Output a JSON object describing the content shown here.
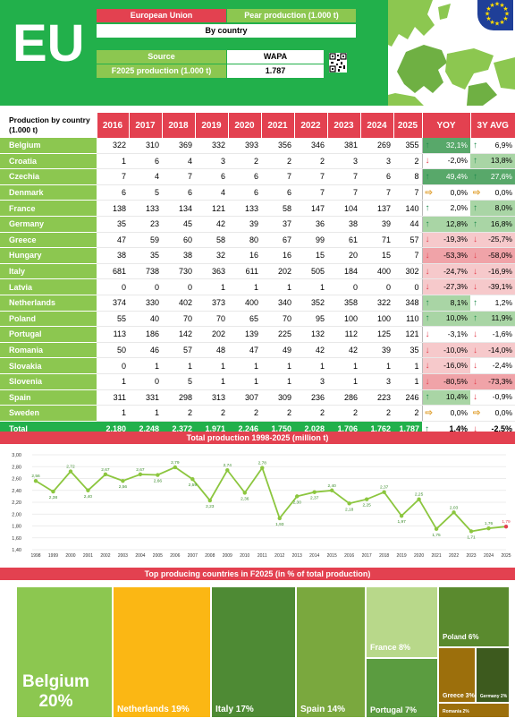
{
  "header": {
    "region": "EU",
    "region_name": "European Union",
    "product": "Pear production (1.000 t)",
    "breakdown": "By country",
    "source_label": "Source",
    "source_value": "WAPA",
    "forecast_label": "F2025 production (1.000 t)",
    "forecast_value": "1.787"
  },
  "table": {
    "corner_label": "Production by country (1.000 t)",
    "years": [
      "2016",
      "2017",
      "2018",
      "2019",
      "2020",
      "2021",
      "2022",
      "2023",
      "2024",
      "2025"
    ],
    "yoy_header": "YOY",
    "avg_header": "3Y AVG",
    "rows": [
      {
        "country": "Belgium",
        "values": [
          "322",
          "310",
          "369",
          "332",
          "393",
          "356",
          "346",
          "381",
          "269",
          "355"
        ],
        "yoy": "32,1%",
        "avg": "6,9%"
      },
      {
        "country": "Croatia",
        "values": [
          "1",
          "6",
          "4",
          "3",
          "2",
          "2",
          "2",
          "3",
          "3",
          "2"
        ],
        "yoy": "-2,0%",
        "avg": "13,8%"
      },
      {
        "country": "Czechia",
        "values": [
          "7",
          "4",
          "7",
          "6",
          "6",
          "7",
          "7",
          "7",
          "6",
          "8"
        ],
        "yoy": "49,4%",
        "avg": "27,6%"
      },
      {
        "country": "Denmark",
        "values": [
          "6",
          "5",
          "6",
          "4",
          "6",
          "6",
          "7",
          "7",
          "7",
          "7"
        ],
        "yoy": "0,0%",
        "avg": "0,0%"
      },
      {
        "country": "France",
        "values": [
          "138",
          "133",
          "134",
          "121",
          "133",
          "58",
          "147",
          "104",
          "137",
          "140"
        ],
        "yoy": "2,0%",
        "avg": "8,0%"
      },
      {
        "country": "Germany",
        "values": [
          "35",
          "23",
          "45",
          "42",
          "39",
          "37",
          "36",
          "38",
          "39",
          "44"
        ],
        "yoy": "12,8%",
        "avg": "16,8%"
      },
      {
        "country": "Greece",
        "values": [
          "47",
          "59",
          "60",
          "58",
          "80",
          "67",
          "99",
          "61",
          "71",
          "57"
        ],
        "yoy": "-19,3%",
        "avg": "-25,7%"
      },
      {
        "country": "Hungary",
        "values": [
          "38",
          "35",
          "38",
          "32",
          "16",
          "16",
          "15",
          "20",
          "15",
          "7"
        ],
        "yoy": "-53,3%",
        "avg": "-58,0%"
      },
      {
        "country": "Italy",
        "values": [
          "681",
          "738",
          "730",
          "363",
          "611",
          "202",
          "505",
          "184",
          "400",
          "302"
        ],
        "yoy": "-24,7%",
        "avg": "-16,9%"
      },
      {
        "country": "Latvia",
        "values": [
          "0",
          "0",
          "0",
          "1",
          "1",
          "1",
          "1",
          "0",
          "0",
          "0"
        ],
        "yoy": "-27,3%",
        "avg": "-39,1%"
      },
      {
        "country": "Netherlands",
        "values": [
          "374",
          "330",
          "402",
          "373",
          "400",
          "340",
          "352",
          "358",
          "322",
          "348"
        ],
        "yoy": "8,1%",
        "avg": "1,2%"
      },
      {
        "country": "Poland",
        "values": [
          "55",
          "40",
          "70",
          "70",
          "65",
          "70",
          "95",
          "100",
          "100",
          "110"
        ],
        "yoy": "10,0%",
        "avg": "11,9%"
      },
      {
        "country": "Portugal",
        "values": [
          "113",
          "186",
          "142",
          "202",
          "139",
          "225",
          "132",
          "112",
          "125",
          "121"
        ],
        "yoy": "-3,1%",
        "avg": "-1,6%"
      },
      {
        "country": "Romania",
        "values": [
          "50",
          "46",
          "57",
          "48",
          "47",
          "49",
          "42",
          "42",
          "39",
          "35"
        ],
        "yoy": "-10,0%",
        "avg": "-14,0%"
      },
      {
        "country": "Slovakia",
        "values": [
          "0",
          "1",
          "1",
          "1",
          "1",
          "1",
          "1",
          "1",
          "1",
          "1"
        ],
        "yoy": "-16,0%",
        "avg": "-2,4%"
      },
      {
        "country": "Slovenia",
        "values": [
          "1",
          "0",
          "5",
          "1",
          "1",
          "1",
          "3",
          "1",
          "3",
          "1"
        ],
        "yoy": "-80,5%",
        "avg": "-73,3%"
      },
      {
        "country": "Spain",
        "values": [
          "311",
          "331",
          "298",
          "313",
          "307",
          "309",
          "236",
          "286",
          "223",
          "246"
        ],
        "yoy": "10,4%",
        "avg": "-0,9%"
      },
      {
        "country": "Sweden",
        "values": [
          "1",
          "1",
          "2",
          "2",
          "2",
          "2",
          "2",
          "2",
          "2",
          "2"
        ],
        "yoy": "0,0%",
        "avg": "0,0%"
      }
    ],
    "total": {
      "country": "Total",
      "values": [
        "2.180",
        "2.248",
        "2.372",
        "1.971",
        "2.246",
        "1.750",
        "2.028",
        "1.706",
        "1.762",
        "1.787"
      ],
      "yoy": "1,4%",
      "avg": "-2,5%"
    }
  },
  "colors": {
    "green_dark": "#22b04b",
    "green_light": "#8cc750",
    "red": "#e34150",
    "line": "#8cc63f",
    "last_point": "#e34150",
    "up_arrow": "#1f8a4c",
    "down_arrow": "#e34150",
    "flat_arrow": "#e0a030"
  },
  "line_chart": {
    "title": "Total production 1998-2025 (million t)",
    "chart_data": {
      "type": "line",
      "x": [
        "1998",
        "1999",
        "2000",
        "2001",
        "2002",
        "2003",
        "2004",
        "2005",
        "2006",
        "2007",
        "2008",
        "2009",
        "2010",
        "2011",
        "2012",
        "2013",
        "2014",
        "2015",
        "2016",
        "2017",
        "2018",
        "2019",
        "2020",
        "2021",
        "2022",
        "2023",
        "2024",
        "2025"
      ],
      "series": [
        {
          "values": [
            2.56,
            2.38,
            2.72,
            2.4,
            2.67,
            2.56,
            2.67,
            2.66,
            2.79,
            2.59,
            2.23,
            2.74,
            2.36,
            2.78,
            1.93,
            2.3,
            2.37,
            2.4,
            2.18,
            2.25,
            2.37,
            1.97,
            2.25,
            1.75,
            2.03,
            1.71,
            1.76,
            1.79
          ]
        }
      ],
      "labels": [
        "2,56",
        "2,38",
        "2,72",
        "2,40",
        "2,67",
        "2,56",
        "2,67",
        "2,66",
        "2,79",
        "2,59",
        "2,23",
        "2,74",
        "2,36",
        "2,78",
        "1,93",
        "2,30",
        "2,37",
        "2,40",
        "2,18",
        "2,25",
        "2,37",
        "1,97",
        "2,25",
        "1,75",
        "2,03",
        "1,71",
        "1,76",
        "1,79"
      ],
      "yticks": [
        "3,00",
        "2,80",
        "2,60",
        "2,40",
        "2,20",
        "2,00",
        "1,80",
        "1,60",
        "1,40"
      ],
      "ylim": [
        1.4,
        3.0
      ],
      "grid": true
    }
  },
  "treemap": {
    "title": "Top producing countries in F2025 (in % of total production)",
    "chart_data": {
      "type": "treemap",
      "items": [
        {
          "label": "Belgium",
          "pct": "20%",
          "value": 20,
          "color": "#8cc750"
        },
        {
          "label": "Netherlands 19%",
          "value": 19,
          "color": "#fbb714"
        },
        {
          "label": "Italy 17%",
          "value": 17,
          "color": "#4e8a34"
        },
        {
          "label": "Spain 14%",
          "value": 14,
          "color": "#7aa83e"
        },
        {
          "label": "France 8%",
          "value": 8,
          "color": "#b8d88a"
        },
        {
          "label": "Portugal 7%",
          "value": 7,
          "color": "#5b9c40"
        },
        {
          "label": "Poland 6%",
          "value": 6,
          "color": "#5a8a2e"
        },
        {
          "label": "Greece 3%",
          "value": 3,
          "color": "#9c6f0c"
        },
        {
          "label": "Germany 2%",
          "value": 2,
          "color": "#3d5a1e"
        },
        {
          "label": "Romania 2%",
          "value": 2,
          "color": "#9c6f0c"
        }
      ]
    }
  }
}
